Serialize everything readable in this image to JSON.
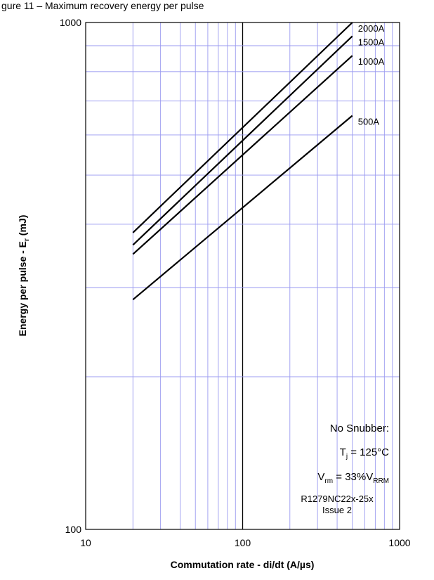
{
  "chart_data": {
    "type": "line",
    "caption": "gure 11 – Maximum recovery energy per pulse",
    "xlabel": "Commutation rate - di/dt (A/µs)",
    "ylabel_main": "Energy per pulse - E",
    "ylabel_sub": "r",
    "ylabel_tail": " (mJ)",
    "x_scale": "log",
    "y_scale": "log",
    "xlim": [
      10,
      1000
    ],
    "ylim": [
      100,
      1000
    ],
    "x_ticks": [
      "10",
      "100",
      "1000"
    ],
    "y_ticks": [
      "100",
      "1000"
    ],
    "grid": true,
    "series": [
      {
        "name": "2000A",
        "x": [
          20,
          500
        ],
        "y": [
          385,
          1000
        ]
      },
      {
        "name": "1500A",
        "x": [
          20,
          500
        ],
        "y": [
          364,
          940
        ]
      },
      {
        "name": "1000A",
        "x": [
          20,
          500
        ],
        "y": [
          349,
          860
        ]
      },
      {
        "name": "500A",
        "x": [
          20,
          500
        ],
        "y": [
          284,
          655
        ]
      }
    ],
    "notes": {
      "line1": "No Snubber:",
      "tj_main": "T",
      "tj_sub": "j",
      "tj_tail": " = 125°C",
      "vrm_main": "V",
      "vrm_sub": "rm",
      "vrm_mid": " = 33%V",
      "vrm_sub2": "RRM",
      "ref1": "R1279NC22x-25x",
      "ref2": "Issue 2"
    }
  }
}
